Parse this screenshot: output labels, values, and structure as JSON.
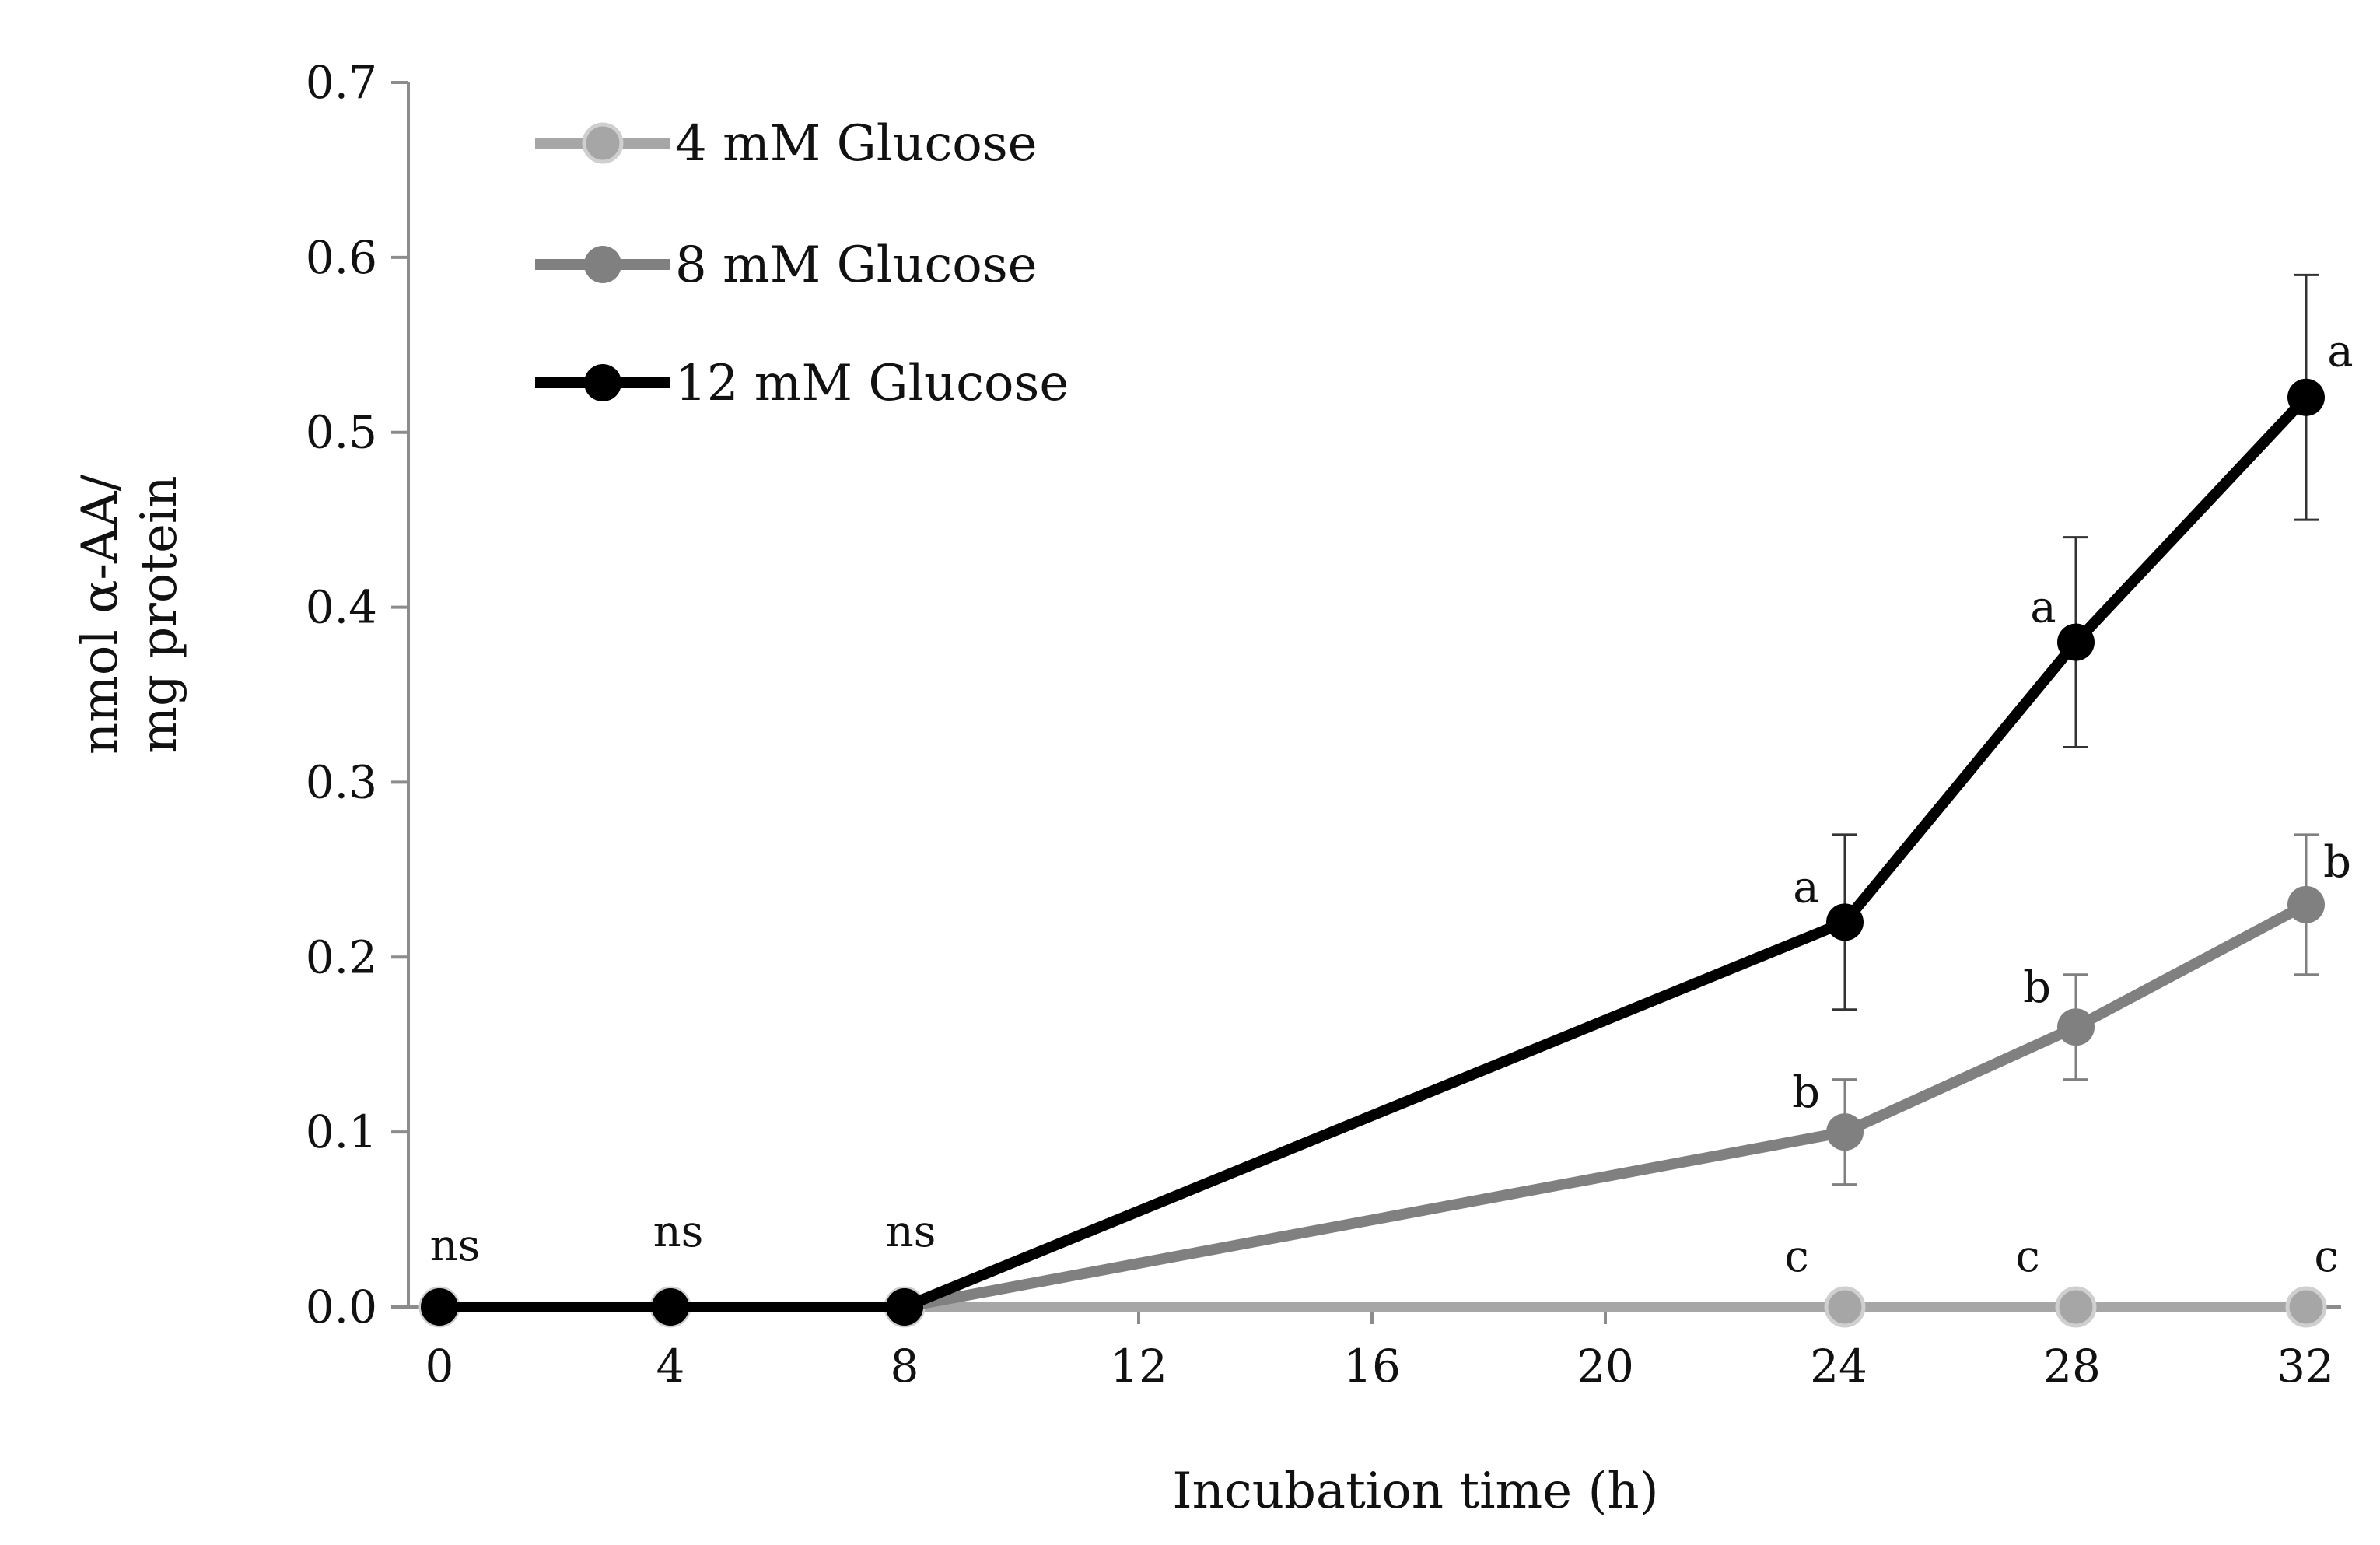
{
  "chart_data": {
    "type": "line",
    "title": "",
    "xlabel": "Incubation time (h)",
    "ylabel_line1": "nmol α-AA/",
    "ylabel_line2": "mg protein",
    "x_ticks": [
      "0",
      "4",
      "8",
      "12",
      "16",
      "20",
      "24",
      "28",
      "32"
    ],
    "y_ticks": [
      "0.0",
      "0.1",
      "0.2",
      "0.3",
      "0.4",
      "0.5",
      "0.6",
      "0.7"
    ],
    "ylim": [
      0,
      0.7
    ],
    "legend_position": "top-left",
    "series": [
      {
        "name": "4 mM Glucose",
        "color": "#a6a6a6",
        "x": [
          0,
          4,
          8,
          24,
          28,
          32
        ],
        "values": [
          0,
          0,
          0,
          0,
          0,
          0
        ],
        "error": [
          0,
          0,
          0,
          0,
          0,
          0
        ],
        "labels": [
          "",
          "",
          "",
          "c",
          "c",
          "c"
        ]
      },
      {
        "name": "8 mM Glucose",
        "color": "#808080",
        "x": [
          0,
          4,
          8,
          24,
          28,
          32
        ],
        "values": [
          0,
          0,
          0,
          0.1,
          0.16,
          0.23
        ],
        "error": [
          0,
          0,
          0,
          0.03,
          0.03,
          0.04
        ],
        "labels": [
          "",
          "",
          "",
          "b",
          "b",
          "b"
        ]
      },
      {
        "name": "12 mM Glucose",
        "color": "#000000",
        "x": [
          0,
          4,
          8,
          24,
          28,
          32
        ],
        "values": [
          0,
          0,
          0,
          0.22,
          0.38,
          0.52
        ],
        "error": [
          0,
          0,
          0,
          0.05,
          0.06,
          0.07
        ],
        "labels": [
          "ns",
          "ns",
          "ns",
          "a",
          "a",
          "a"
        ]
      }
    ]
  }
}
